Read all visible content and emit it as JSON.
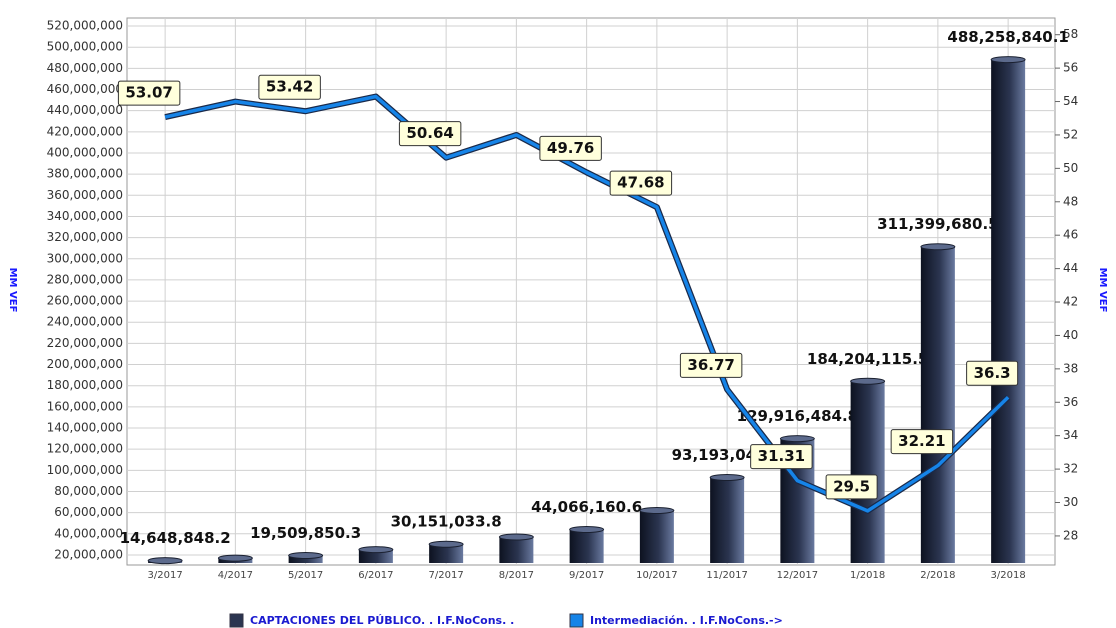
{
  "chart_data": {
    "type": "bar-line",
    "y_label": "MM VEF",
    "y2_label": "MM VEF",
    "categories": [
      "3/2017",
      "4/2017",
      "5/2017",
      "6/2017",
      "7/2017",
      "8/2017",
      "9/2017",
      "10/2017",
      "11/2017",
      "12/2017",
      "1/2018",
      "2/2018",
      "3/2018"
    ],
    "series": [
      {
        "name": "CAPTACIONES DEL PÚBLICO. . I.F.NoCons. .",
        "color": "#2b3550",
        "type": "bar",
        "values": [
          14648848.2,
          17000000,
          19509850.3,
          25000000,
          30151033.8,
          37000000,
          44066160.6,
          62000000,
          93193048.7,
          129916484.8,
          184204115.5,
          311399680.5,
          488258840.1
        ],
        "value_labels": [
          "14,648,848.2",
          null,
          "19,509,850.3",
          null,
          "30,151,033.8",
          null,
          "44,066,160.6",
          null,
          "93,193,048.7",
          "129,916,484.8",
          "184,204,115.5",
          "311,399,680.5",
          "488,258,840.1"
        ]
      },
      {
        "name": "Intermediación. . I.F.NoCons.->",
        "color": "#1684e8",
        "type": "line",
        "axis": "y2",
        "values": [
          53.07,
          54.0,
          53.42,
          54.3,
          50.64,
          52.0,
          49.76,
          47.68,
          36.77,
          31.31,
          29.5,
          32.21,
          36.3
        ],
        "value_labels": [
          "53.07",
          null,
          "53.42",
          null,
          "50.64",
          null,
          "49.76",
          "47.68",
          "36.77",
          "31.31",
          "29.5",
          "32.21",
          "36.3"
        ]
      }
    ],
    "ylim": [
      10500000,
      527600000
    ],
    "yticks": [
      {
        "value": 20000000,
        "label": "20,000,000"
      },
      {
        "value": 40000000,
        "label": "40,000,000"
      },
      {
        "value": 60000000,
        "label": "60,000,000"
      },
      {
        "value": 80000000,
        "label": "80,000,000"
      },
      {
        "value": 100000000,
        "label": "100,000,000"
      },
      {
        "value": 120000000,
        "label": "120,000,000"
      },
      {
        "value": 140000000,
        "label": "140,000,000"
      },
      {
        "value": 160000000,
        "label": "160,000,000"
      },
      {
        "value": 180000000,
        "label": "180,000,000"
      },
      {
        "value": 200000000,
        "label": "200,000,000"
      },
      {
        "value": 220000000,
        "label": "220,000,000"
      },
      {
        "value": 240000000,
        "label": "240,000,000"
      },
      {
        "value": 260000000,
        "label": "260,000,000"
      },
      {
        "value": 280000000,
        "label": "280,000,000"
      },
      {
        "value": 300000000,
        "label": "300,000,000"
      },
      {
        "value": 320000000,
        "label": "320,000,000"
      },
      {
        "value": 340000000,
        "label": "340,000,000"
      },
      {
        "value": 360000000,
        "label": "360,000,000"
      },
      {
        "value": 380000000,
        "label": "380,000,000"
      },
      {
        "value": 400000000,
        "label": "400,000,000"
      },
      {
        "value": 420000000,
        "label": "420,000,000"
      },
      {
        "value": 440000000,
        "label": "440,000,000"
      },
      {
        "value": 460000000,
        "label": "460,000,000"
      },
      {
        "value": 480000000,
        "label": "480,000,000"
      },
      {
        "value": 500000000,
        "label": "500,000,000"
      },
      {
        "value": 520000000,
        "label": "520,000,000"
      }
    ],
    "y2lim": [
      26.26,
      59.0
    ],
    "y2ticks": [
      28,
      30,
      32,
      34,
      36,
      38,
      40,
      42,
      44,
      46,
      48,
      50,
      52,
      54,
      56,
      58
    ],
    "grid": true
  }
}
